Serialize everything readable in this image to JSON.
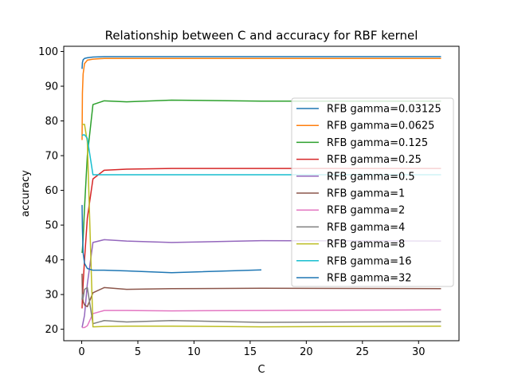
{
  "chart_data": {
    "type": "line",
    "title": "Relationship between C and accuracy for RBF kernel",
    "xlabel": "C",
    "ylabel": "accuracy",
    "xlim": [
      -1.6,
      33.6
    ],
    "ylim": [
      16.7,
      101.5
    ],
    "xticks": [
      0,
      5,
      10,
      15,
      20,
      25,
      30
    ],
    "yticks": [
      20,
      30,
      40,
      50,
      60,
      70,
      80,
      90,
      100
    ],
    "grid": false,
    "legend_position": "right",
    "series": [
      {
        "name": "RFB gamma=0.03125",
        "color": "#1f77b4",
        "x": [
          0.03125,
          0.0625,
          0.125,
          0.25,
          0.5,
          1,
          2,
          4,
          8,
          16,
          32
        ],
        "y": [
          95.0,
          96.8,
          97.6,
          98.0,
          98.2,
          98.4,
          98.5,
          98.5,
          98.5,
          98.5,
          98.5
        ]
      },
      {
        "name": "RFB gamma=0.0625",
        "color": "#ff7f0e",
        "x": [
          0.03125,
          0.0625,
          0.125,
          0.25,
          0.5,
          1,
          2,
          4,
          8,
          16,
          32
        ],
        "y": [
          74.5,
          88.0,
          93.5,
          96.5,
          97.5,
          97.8,
          98.0,
          98.0,
          98.0,
          98.0,
          98.0
        ]
      },
      {
        "name": "RFB gamma=0.125",
        "color": "#2ca02c",
        "x": [
          0.03125,
          0.0625,
          0.125,
          0.25,
          0.5,
          1,
          2,
          4,
          8,
          16,
          32
        ],
        "y": [
          42.0,
          43.0,
          46.0,
          55.0,
          70.0,
          84.7,
          85.8,
          85.5,
          86.0,
          85.7,
          85.7
        ]
      },
      {
        "name": "RFB gamma=0.25",
        "color": "#d62728",
        "x": [
          0.03125,
          0.0625,
          0.125,
          0.25,
          0.5,
          1,
          2,
          4,
          8,
          16,
          32
        ],
        "y": [
          26.0,
          29.0,
          33.0,
          40.0,
          52.0,
          63.3,
          65.8,
          66.1,
          66.3,
          66.3,
          66.3
        ]
      },
      {
        "name": "RFB gamma=0.5",
        "color": "#9467bd",
        "x": [
          0.03125,
          0.0625,
          0.125,
          0.25,
          0.5,
          1,
          2,
          4,
          8,
          16,
          32
        ],
        "y": [
          20.5,
          21.0,
          22.0,
          24.0,
          33.0,
          45.0,
          45.8,
          45.4,
          45.0,
          45.5,
          45.4
        ]
      },
      {
        "name": "RFB gamma=1",
        "color": "#8c564b",
        "x": [
          0.03125,
          0.0625,
          0.125,
          0.25,
          0.5,
          1,
          2,
          4,
          8,
          16,
          32
        ],
        "y": [
          36.0,
          30.0,
          28.0,
          27.0,
          26.5,
          30.5,
          32.0,
          31.5,
          31.7,
          31.8,
          31.7
        ]
      },
      {
        "name": "RFB gamma=2",
        "color": "#e377c2",
        "x": [
          0.03125,
          0.0625,
          0.125,
          0.25,
          0.5,
          1,
          2,
          4,
          8,
          16,
          32
        ],
        "y": [
          20.5,
          20.5,
          20.5,
          20.5,
          21.0,
          24.5,
          25.4,
          25.4,
          25.3,
          25.4,
          25.6
        ]
      },
      {
        "name": "RFB gamma=4",
        "color": "#7f7f7f",
        "x": [
          0.03125,
          0.0625,
          0.125,
          0.25,
          0.5,
          1,
          2,
          4,
          8,
          16,
          32
        ],
        "y": [
          28.5,
          30.0,
          29.0,
          31.5,
          32.0,
          21.6,
          22.5,
          22.1,
          22.5,
          22.0,
          22.2
        ]
      },
      {
        "name": "RFB gamma=8",
        "color": "#bcbd22",
        "x": [
          0.03125,
          0.0625,
          0.125,
          0.25,
          0.5,
          1,
          2,
          4,
          8,
          16,
          32
        ],
        "y": [
          79.0,
          79.0,
          79.0,
          79.0,
          74.0,
          20.7,
          20.8,
          20.9,
          20.9,
          20.7,
          20.9
        ]
      },
      {
        "name": "RFB gamma=16",
        "color": "#17becf",
        "x": [
          0.03125,
          0.0625,
          0.125,
          0.25,
          0.5,
          1,
          2,
          4,
          8,
          16,
          32
        ],
        "y": [
          75.8,
          75.8,
          76.0,
          76.0,
          75.0,
          64.5,
          64.5,
          64.5,
          64.5,
          64.5,
          64.5
        ]
      },
      {
        "name": "RFB gamma=32",
        "color": "#1f77b4",
        "x": [
          0.03125,
          0.0625,
          0.125,
          0.25,
          0.5,
          1,
          2,
          4,
          8,
          16
        ],
        "y": [
          55.8,
          49.0,
          42.0,
          39.0,
          37.5,
          37.0,
          37.0,
          36.8,
          36.3,
          37.1
        ]
      }
    ]
  }
}
